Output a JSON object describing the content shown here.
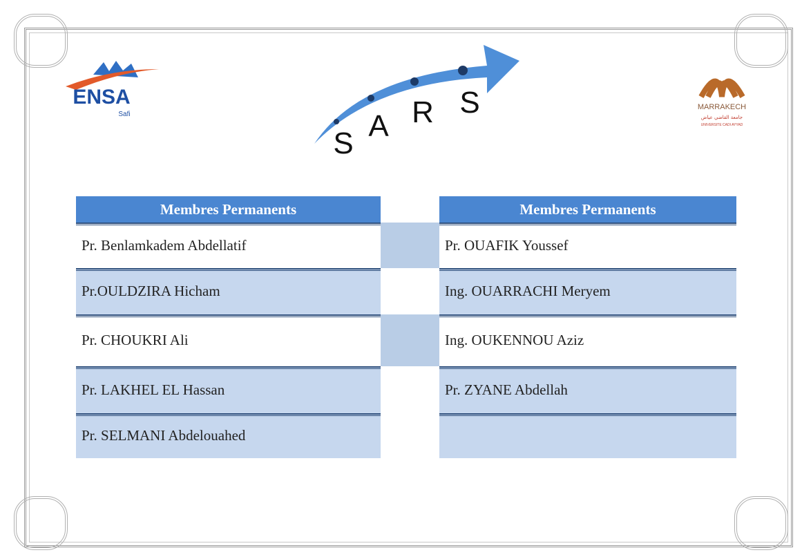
{
  "logos": {
    "left": {
      "name": "ENSA",
      "sub": "Safi"
    },
    "right": {
      "name": "MARRAKECH",
      "arabic": "جامعة القاضي عياض",
      "latin": "UNIVERSITE CADI AYYAD"
    }
  },
  "banner": {
    "letters": [
      "S",
      "A",
      "R",
      "S"
    ]
  },
  "tables": [
    {
      "header": "Membres Permanents",
      "rows": [
        "Pr. Benlamkadem Abdellatif",
        "Pr.OULDZIRA Hicham",
        "Pr. CHOUKRI Ali",
        "Pr. LAKHEL EL Hassan",
        "Pr. SELMANI Abdelouahed"
      ]
    },
    {
      "header": "Membres Permanents",
      "rows": [
        "Pr. OUAFIK Youssef",
        "Ing. OUARRACHI Meryem",
        "Ing. OUKENNOU Aziz",
        "Pr. ZYANE Abdellah"
      ]
    }
  ]
}
